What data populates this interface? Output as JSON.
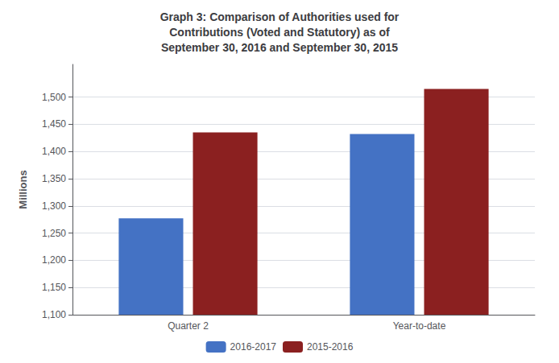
{
  "chart_data": {
    "type": "bar",
    "title": "Graph 3: Comparison of Authorities used for\nContributions (Voted and Statutory) as of\nSeptember 30, 2016 and September 30, 2015",
    "categories": [
      "Quarter 2",
      "Year-to-date"
    ],
    "series": [
      {
        "name": "2016-2017",
        "color": "#4472C4",
        "values": [
          1277,
          1432
        ]
      },
      {
        "name": "2015-2016",
        "color": "#8B2020",
        "values": [
          1435,
          1515
        ]
      }
    ],
    "ylabel": "Millions",
    "ylim": [
      1100,
      1560
    ],
    "yticks": [
      {
        "value": 1100,
        "label": "1,100"
      },
      {
        "value": 1150,
        "label": "1,150"
      },
      {
        "value": 1200,
        "label": "1,200"
      },
      {
        "value": 1250,
        "label": "1,250"
      },
      {
        "value": 1300,
        "label": "1,300"
      },
      {
        "value": 1350,
        "label": "1,350"
      },
      {
        "value": 1400,
        "label": "1,400"
      },
      {
        "value": 1450,
        "label": "1,450"
      },
      {
        "value": 1500,
        "label": "1,500"
      }
    ],
    "grid": true,
    "legend": "bottom"
  }
}
